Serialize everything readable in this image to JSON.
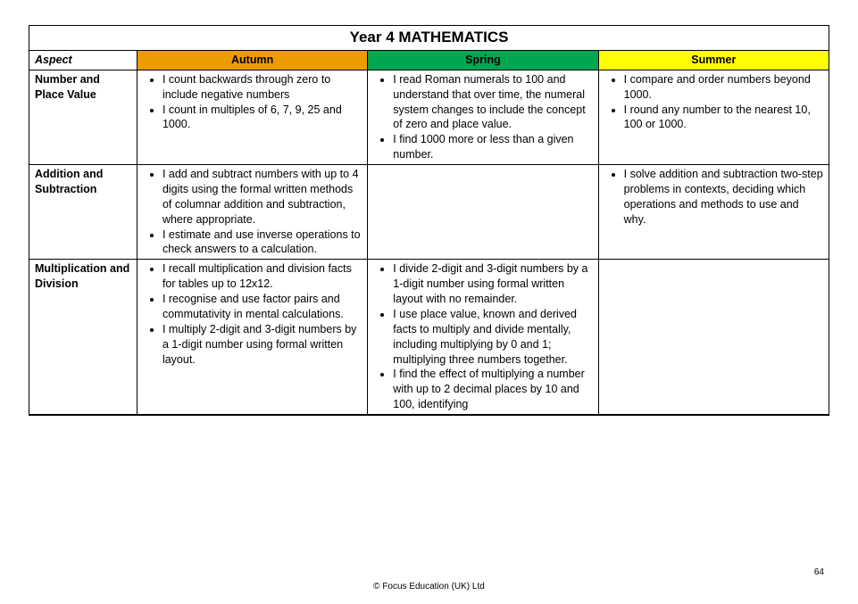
{
  "page": {
    "title": "Year 4 MATHEMATICS",
    "footer": "© Focus Education (UK) Ltd",
    "page_number": "64"
  },
  "colors": {
    "autumn_bg": "#ed9c00",
    "spring_bg": "#00a650",
    "summer_bg": "#ffff00",
    "border": "#000000",
    "text": "#000000"
  },
  "columns": {
    "aspect_width_pct": 13.5,
    "term_width_pct": 28.83
  },
  "headers": {
    "aspect": "Aspect",
    "autumn": "Autumn",
    "spring": "Spring",
    "summer": "Summer"
  },
  "rows": [
    {
      "aspect": "Number and Place Value",
      "autumn": [
        "I count backwards through zero to include negative numbers",
        "I count in multiples of 6, 7, 9, 25 and 1000."
      ],
      "spring": [
        "I read Roman numerals to 100 and understand that over time, the numeral system changes to include the concept of zero and place value.",
        "I find 1000 more or less than a given number."
      ],
      "summer": [
        "I compare and order numbers beyond 1000.",
        "I round any number to the nearest 10, 100 or 1000."
      ]
    },
    {
      "aspect": "Addition and Subtraction",
      "autumn": [
        "I add and subtract numbers with up to 4 digits using the formal written methods of columnar addition and subtraction, where appropriate.",
        "I estimate and use inverse operations to check answers to a calculation."
      ],
      "spring": [],
      "summer": [
        "I solve addition and subtraction two-step problems in contexts, deciding which operations and methods to use and why."
      ]
    },
    {
      "aspect": "Multiplication and Division",
      "autumn": [
        "I recall multiplication and division facts for tables up to 12x12.",
        "I recognise and use factor pairs and commutativity in mental calculations.",
        "I multiply 2-digit and 3-digit numbers by a 1-digit number using formal written layout."
      ],
      "spring": [
        "I divide 2-digit and 3-digit numbers by a 1-digit number using formal written layout with no remainder.",
        "I use place value, known and derived facts to multiply and divide mentally, including multiplying by 0 and 1; multiplying three numbers together.",
        "I find the effect of multiplying a number with up to 2 decimal places by 10 and 100, identifying"
      ],
      "summer": []
    }
  ]
}
